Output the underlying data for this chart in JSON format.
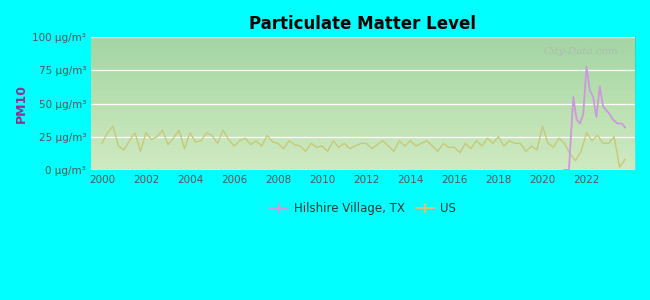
{
  "title": "Particulate Matter Level",
  "ylabel": "PM10",
  "background_outer": "#00FFFF",
  "watermark": "City-Data.com",
  "us_color": "#c8c87a",
  "city_color": "#cc99dd",
  "ylim": [
    0,
    100
  ],
  "yticks": [
    0,
    25,
    50,
    75,
    100
  ],
  "ytick_labels": [
    "0 μg/m³",
    "25 μg/m³",
    "50 μg/m³",
    "75 μg/m³",
    "100 μg/m³"
  ],
  "xlim": [
    1999.5,
    2024.2
  ],
  "xticks": [
    2000,
    2002,
    2004,
    2006,
    2008,
    2010,
    2012,
    2014,
    2016,
    2018,
    2020,
    2022
  ],
  "legend_city": "Hilshire Village, TX",
  "legend_us": "US",
  "us_x": [
    2000.0,
    2000.25,
    2000.5,
    2000.75,
    2001.0,
    2001.25,
    2001.5,
    2001.75,
    2002.0,
    2002.25,
    2002.5,
    2002.75,
    2003.0,
    2003.25,
    2003.5,
    2003.75,
    2004.0,
    2004.25,
    2004.5,
    2004.75,
    2005.0,
    2005.25,
    2005.5,
    2005.75,
    2006.0,
    2006.25,
    2006.5,
    2006.75,
    2007.0,
    2007.25,
    2007.5,
    2007.75,
    2008.0,
    2008.25,
    2008.5,
    2008.75,
    2009.0,
    2009.25,
    2009.5,
    2009.75,
    2010.0,
    2010.25,
    2010.5,
    2010.75,
    2011.0,
    2011.25,
    2011.5,
    2011.75,
    2012.0,
    2012.25,
    2012.5,
    2012.75,
    2013.0,
    2013.25,
    2013.5,
    2013.75,
    2014.0,
    2014.25,
    2014.5,
    2014.75,
    2015.0,
    2015.25,
    2015.5,
    2015.75,
    2016.0,
    2016.25,
    2016.5,
    2016.75,
    2017.0,
    2017.25,
    2017.5,
    2017.75,
    2018.0,
    2018.25,
    2018.5,
    2018.75,
    2019.0,
    2019.25,
    2019.5,
    2019.75,
    2020.0,
    2020.25,
    2020.5,
    2020.75,
    2021.0,
    2021.25,
    2021.5,
    2021.75,
    2022.0,
    2022.25,
    2022.5,
    2022.75,
    2023.0,
    2023.25,
    2023.5,
    2023.75
  ],
  "us_y": [
    20,
    28,
    33,
    18,
    15,
    22,
    28,
    14,
    28,
    23,
    25,
    30,
    19,
    24,
    30,
    16,
    28,
    21,
    22,
    28,
    26,
    20,
    30,
    23,
    18,
    22,
    24,
    19,
    22,
    18,
    26,
    21,
    20,
    16,
    22,
    19,
    18,
    14,
    20,
    17,
    18,
    14,
    22,
    17,
    20,
    16,
    18,
    20,
    20,
    16,
    19,
    22,
    18,
    14,
    22,
    18,
    22,
    18,
    20,
    22,
    18,
    14,
    20,
    17,
    17,
    13,
    20,
    16,
    22,
    18,
    24,
    20,
    25,
    18,
    22,
    20,
    20,
    14,
    18,
    15,
    33,
    20,
    17,
    24,
    20,
    12,
    7,
    14,
    28,
    22,
    26,
    20,
    20,
    25,
    2,
    8
  ],
  "city_x": [
    2021.0,
    2021.2,
    2021.4,
    2021.55,
    2021.7,
    2021.85,
    2022.0,
    2022.15,
    2022.3,
    2022.45,
    2022.6,
    2022.75,
    2022.9,
    2023.05,
    2023.2,
    2023.4,
    2023.6,
    2023.75
  ],
  "city_y": [
    0,
    0,
    55,
    38,
    35,
    42,
    78,
    60,
    55,
    40,
    63,
    48,
    45,
    42,
    38,
    35,
    35,
    32
  ]
}
